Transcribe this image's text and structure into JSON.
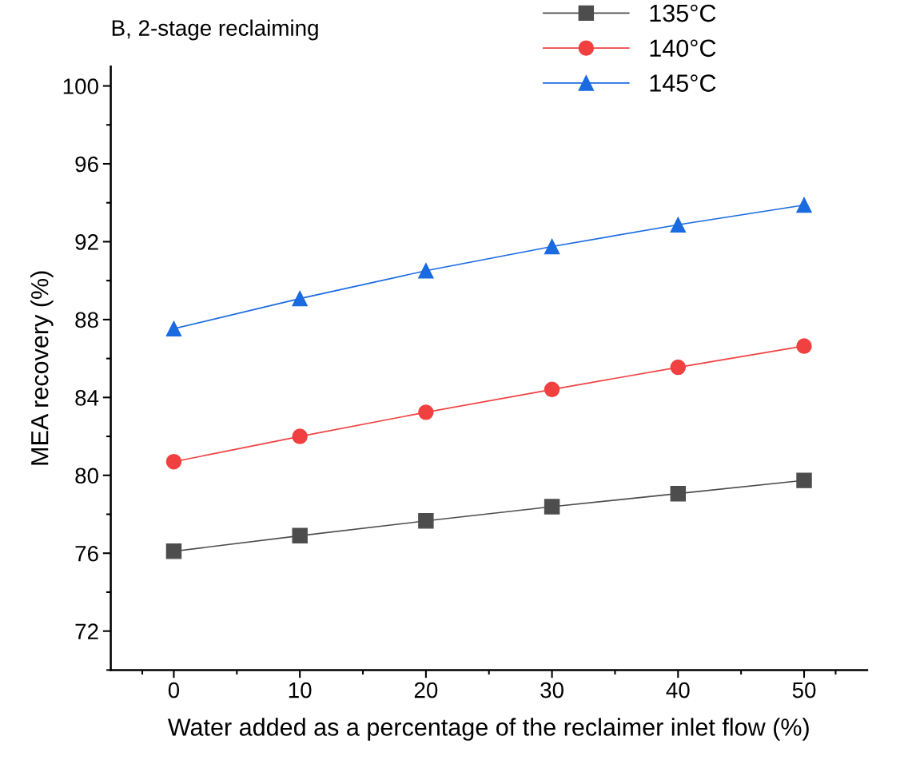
{
  "chart_data": {
    "type": "line",
    "title": "B, 2-stage reclaiming",
    "xlabel": "Water added as a percentage of the reclaimer inlet flow (%)",
    "ylabel": "MEA recovery (%)",
    "x": [
      0,
      10,
      20,
      30,
      40,
      50
    ],
    "series": [
      {
        "name": "135°C",
        "color": "#4d4d4d",
        "marker": "square",
        "values": [
          76.1,
          76.9,
          77.66,
          78.39,
          79.06,
          79.74
        ]
      },
      {
        "name": "140°C",
        "color": "#f04040",
        "marker": "circle",
        "values": [
          80.7,
          82.0,
          83.24,
          84.41,
          85.55,
          86.64
        ]
      },
      {
        "name": "145°C",
        "color": "#1a6ae0",
        "marker": "triangle",
        "values": [
          87.53,
          89.08,
          90.51,
          91.75,
          92.87,
          93.88
        ]
      }
    ],
    "xlim": [
      -5,
      55
    ],
    "ylim": [
      70,
      101
    ],
    "xticks": [
      0,
      10,
      20,
      30,
      40,
      50
    ],
    "yticks": [
      72,
      76,
      80,
      84,
      88,
      92,
      96,
      100
    ],
    "grid": false,
    "legend": "top right",
    "line_style": "solid"
  }
}
